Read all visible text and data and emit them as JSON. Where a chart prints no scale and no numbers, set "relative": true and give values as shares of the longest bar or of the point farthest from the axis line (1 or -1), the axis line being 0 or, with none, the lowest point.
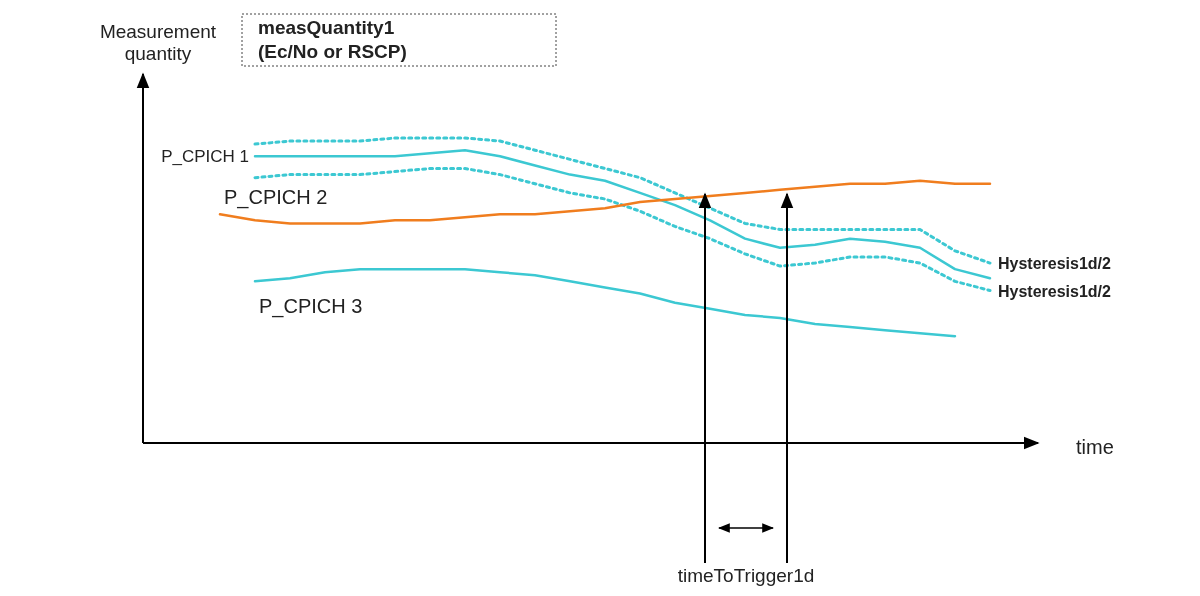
{
  "chart_data": {
    "type": "line",
    "relative": true,
    "title": "measQuantity1\n(Ec/No or RSCP)",
    "ylabel": "Measurement\nquantity",
    "xlabel": "time",
    "categories": [
      null,
      null,
      null,
      null,
      null,
      null,
      null,
      null,
      null,
      null,
      null,
      null,
      null,
      null,
      null,
      null,
      null,
      null,
      null,
      null,
      null,
      null,
      null
    ],
    "line_style": "solid",
    "marker": "none",
    "grid": false,
    "series": [
      {
        "name": "P_CPICH 1",
        "color": "#3cc8d2",
        "values": [
          null,
          0.94,
          0.94,
          0.94,
          0.94,
          0.94,
          0.95,
          0.96,
          0.94,
          0.91,
          0.88,
          0.86,
          0.82,
          0.78,
          0.73,
          0.67,
          0.64,
          0.65,
          0.67,
          0.66,
          0.64,
          0.57,
          0.54
        ]
      },
      {
        "name": "Hysteresis1d/2",
        "color": "#3cc8d2",
        "line_style": "dotted",
        "values": [
          null,
          0.98,
          0.99,
          0.99,
          0.99,
          1.0,
          1.0,
          1.0,
          0.99,
          0.96,
          0.93,
          0.9,
          0.87,
          0.82,
          0.77,
          0.72,
          0.7,
          0.7,
          0.7,
          0.7,
          0.7,
          0.63,
          0.59
        ]
      },
      {
        "name": "Hysteresis1d/2",
        "color": "#3cc8d2",
        "line_style": "dotted",
        "values": [
          null,
          0.87,
          0.88,
          0.88,
          0.88,
          0.89,
          0.9,
          0.9,
          0.88,
          0.85,
          0.82,
          0.8,
          0.76,
          0.71,
          0.67,
          0.62,
          0.58,
          0.59,
          0.61,
          0.61,
          0.59,
          0.53,
          0.5
        ]
      },
      {
        "name": "P_CPICH 2",
        "color": "#f07d1e",
        "values": [
          0.75,
          0.73,
          0.72,
          0.72,
          0.72,
          0.73,
          0.73,
          0.74,
          0.75,
          0.75,
          0.76,
          0.77,
          0.79,
          0.8,
          0.81,
          0.82,
          0.83,
          0.84,
          0.85,
          0.85,
          0.86,
          0.85,
          0.85
        ]
      },
      {
        "name": "P_CPICH 3",
        "color": "#3cc8d2",
        "values": [
          null,
          0.53,
          0.54,
          0.56,
          0.57,
          0.57,
          0.57,
          0.57,
          0.56,
          0.55,
          0.53,
          0.51,
          0.49,
          0.46,
          0.44,
          0.42,
          0.41,
          0.39,
          0.38,
          0.37,
          0.36,
          0.35,
          null
        ]
      }
    ],
    "annotations": [
      "timeToTrigger1d"
    ]
  }
}
